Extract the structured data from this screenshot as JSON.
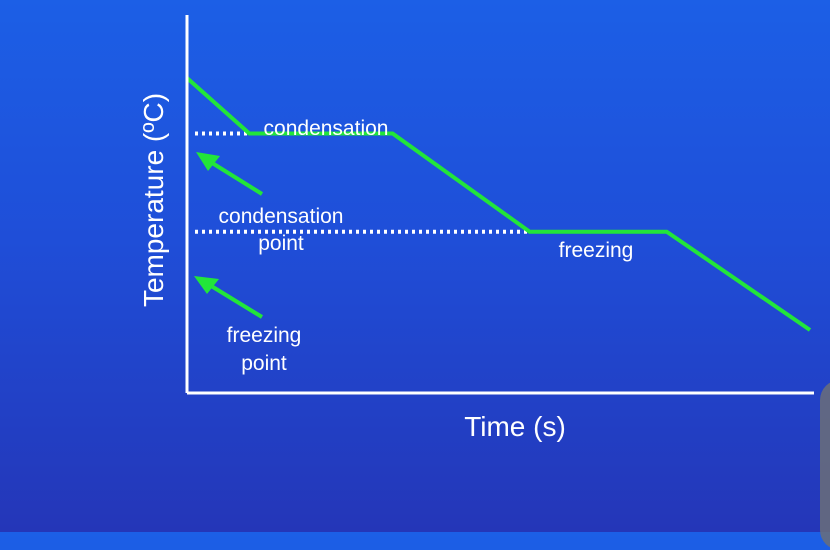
{
  "colors": {
    "background_top": "#1c5fe6",
    "background_bottom": "#2436b8",
    "axis": "#ffffff",
    "curve": "#22e53a",
    "arrow": "#22e53a",
    "dotted": "#ffffff"
  },
  "chart_data": {
    "type": "line",
    "title": "",
    "xlabel": "Time (s)",
    "ylabel": "Temperature (ºC)",
    "grid": false,
    "legend": "none",
    "series": [
      {
        "points": [
          {
            "x": 0,
            "y": 100
          },
          {
            "x": 10,
            "y": 78
          },
          {
            "x": 33,
            "y": 78
          },
          {
            "x": 55,
            "y": 39
          },
          {
            "x": 77,
            "y": 39
          },
          {
            "x": 100,
            "y": 0
          }
        ]
      }
    ],
    "xlim": [
      0,
      100
    ],
    "ylim": [
      -25,
      125
    ],
    "reference_lines": [
      {
        "y": 78,
        "x_end": 10,
        "style": "dotted"
      },
      {
        "y": 39,
        "x_end": 55,
        "style": "dotted"
      }
    ],
    "annotations": [
      {
        "text": "condensation",
        "kind": "segment-label"
      },
      {
        "text": "freezing",
        "kind": "segment-label"
      },
      {
        "lines": [
          "condensation",
          "point"
        ],
        "kind": "arrow-label"
      },
      {
        "lines": [
          "freezing",
          "point"
        ],
        "kind": "arrow-label"
      }
    ]
  }
}
